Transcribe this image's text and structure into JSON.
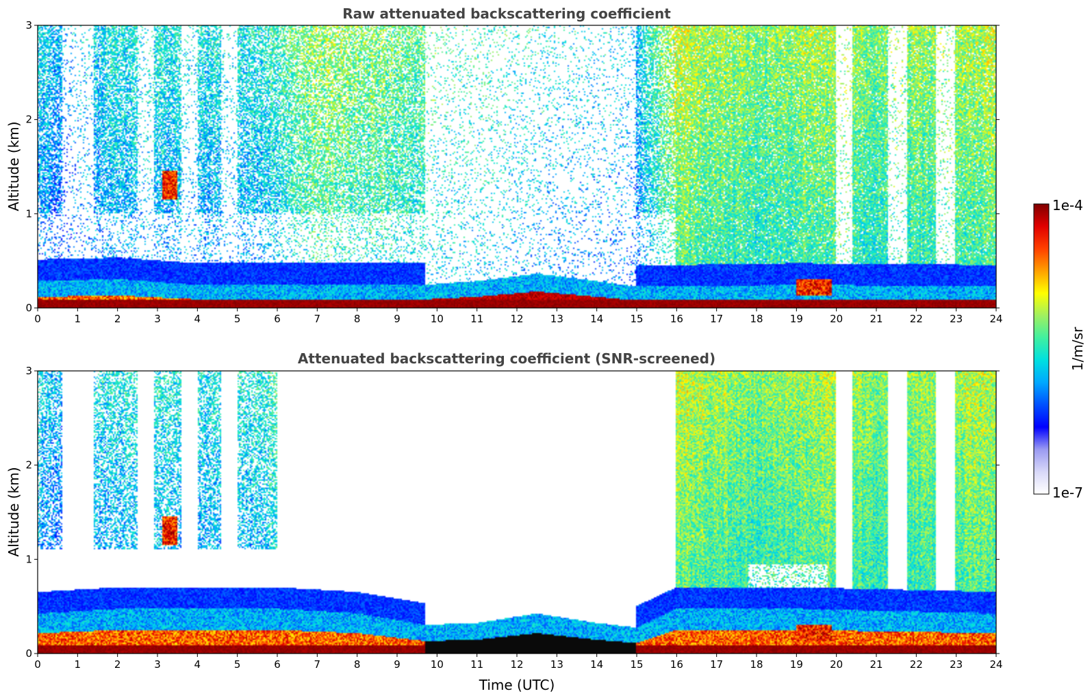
{
  "colors": {
    "colormap": [
      "#ffffff",
      "#d8d8f8",
      "#9a9af2",
      "#0000ff",
      "#0050ff",
      "#00a8ff",
      "#00e0e0",
      "#40f0a0",
      "#a0f060",
      "#ffff00",
      "#ffa000",
      "#ff4000",
      "#e00000",
      "#800000"
    ],
    "screened_core": "#000000",
    "text_title": "#444444"
  },
  "chart_data": [
    {
      "type": "heatmap",
      "title": "Raw attenuated backscattering coefficient",
      "xlabel": "",
      "ylabel": "Altitude (km)",
      "xlim": [
        0,
        24
      ],
      "ylim": [
        0,
        3
      ],
      "xticks": [
        "0",
        "1",
        "2",
        "3",
        "4",
        "5",
        "6",
        "7",
        "8",
        "9",
        "10",
        "11",
        "12",
        "13",
        "14",
        "15",
        "16",
        "17",
        "18",
        "19",
        "20",
        "21",
        "22",
        "23",
        "24"
      ],
      "yticks": [
        "0",
        "1",
        "2",
        "3"
      ],
      "screened": false,
      "features": {
        "boundary_layer_top_km": [
          [
            0,
            0.16
          ],
          [
            2,
            0.18
          ],
          [
            4,
            0.12
          ],
          [
            6,
            0.12
          ],
          [
            8,
            0.12
          ],
          [
            9.7,
            0.12
          ],
          [
            11,
            0.16
          ],
          [
            12.5,
            0.24
          ],
          [
            14,
            0.16
          ],
          [
            15,
            0.1
          ],
          [
            16,
            0.1
          ],
          [
            19,
            0.12
          ],
          [
            24,
            0.1
          ]
        ],
        "elevated_layers": [
          {
            "x_utc": [
              3.1,
              3.5
            ],
            "alt_km": [
              1.15,
              1.45
            ]
          },
          {
            "x_utc": [
              19.0,
              19.9
            ],
            "alt_km": [
              0.12,
              0.3
            ]
          }
        ],
        "clear_sky_gap_utc": [
          9.7,
          15.0
        ],
        "high_background_period_utc": [
          16.0,
          24.0
        ]
      }
    },
    {
      "type": "heatmap",
      "title": "Attenuated backscattering coefficient (SNR-screened)",
      "xlabel": "Time (UTC)",
      "ylabel": "Altitude (km)",
      "xlim": [
        0,
        24
      ],
      "ylim": [
        0,
        3
      ],
      "xticks": [
        "0",
        "1",
        "2",
        "3",
        "4",
        "5",
        "6",
        "7",
        "8",
        "9",
        "10",
        "11",
        "12",
        "13",
        "14",
        "15",
        "16",
        "17",
        "18",
        "19",
        "20",
        "21",
        "22",
        "23",
        "24"
      ],
      "yticks": [
        "0",
        "1",
        "2",
        "3"
      ],
      "screened": true,
      "features": {
        "boundary_layer_top_km": [
          [
            0,
            0.3
          ],
          [
            2,
            0.35
          ],
          [
            4,
            0.35
          ],
          [
            6,
            0.35
          ],
          [
            8,
            0.3
          ],
          [
            9.7,
            0.18
          ],
          [
            11,
            0.2
          ],
          [
            12.5,
            0.3
          ],
          [
            14,
            0.2
          ],
          [
            15,
            0.15
          ],
          [
            16,
            0.35
          ],
          [
            19,
            0.35
          ],
          [
            24,
            0.3
          ]
        ],
        "elevated_layers": [
          {
            "x_utc": [
              3.1,
              3.5
            ],
            "alt_km": [
              1.15,
              1.45
            ]
          },
          {
            "x_utc": [
              19.0,
              19.9
            ],
            "alt_km": [
              0.12,
              0.3
            ]
          }
        ],
        "cloud_core_band_utc": [
          9.7,
          15.0
        ],
        "high_background_period_utc": [
          16.0,
          24.0
        ]
      }
    }
  ],
  "colorbar": {
    "max_label": "1e-4",
    "min_label": "1e-7",
    "units_label": "1/m/sr",
    "range": [
      1e-07,
      0.0001
    ],
    "scale": "log"
  }
}
